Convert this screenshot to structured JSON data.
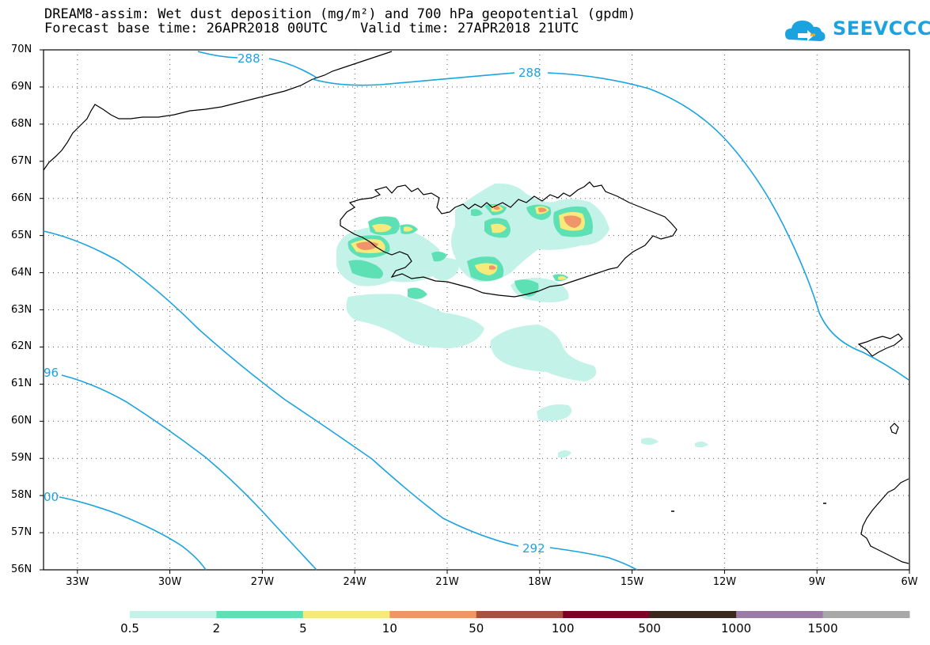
{
  "title": {
    "line1": "DREAM8-assim: Wet dust deposition (mg/m²) and 700 hPa geopotential (gpdm)",
    "line2": "Forecast base time: 26APR2018 00UTC    Valid time: 27APR2018 21UTC"
  },
  "logo": {
    "text": "SEEVCCC",
    "icon": "cloud-arrow-icon",
    "color": "#1ba3e0"
  },
  "map": {
    "latitude_labels": [
      "70N",
      "69N",
      "68N",
      "67N",
      "66N",
      "65N",
      "64N",
      "63N",
      "62N",
      "61N",
      "60N",
      "59N",
      "58N",
      "57N",
      "56N"
    ],
    "longitude_labels": [
      "33W",
      "30W",
      "27W",
      "24W",
      "21W",
      "18W",
      "15W",
      "12W",
      "9W",
      "6W"
    ],
    "lat_range": [
      56,
      70
    ],
    "lon_range": [
      -34.1,
      -6
    ],
    "grid": "dotted",
    "contour_color": "#1ba3e0",
    "contour_labels": [
      "288",
      "288",
      "292",
      "96",
      "00"
    ]
  },
  "legend": {
    "labels": [
      "0.5",
      "2",
      "5",
      "10",
      "50",
      "100",
      "500",
      "1000",
      "1500"
    ],
    "colors": [
      "#c2f2e8",
      "#5ee0b5",
      "#f5ea7a",
      "#f0956a",
      "#a55040",
      "#7c0026",
      "#3a2a1e",
      "#9c7ca6",
      "#a8a8a8"
    ]
  }
}
